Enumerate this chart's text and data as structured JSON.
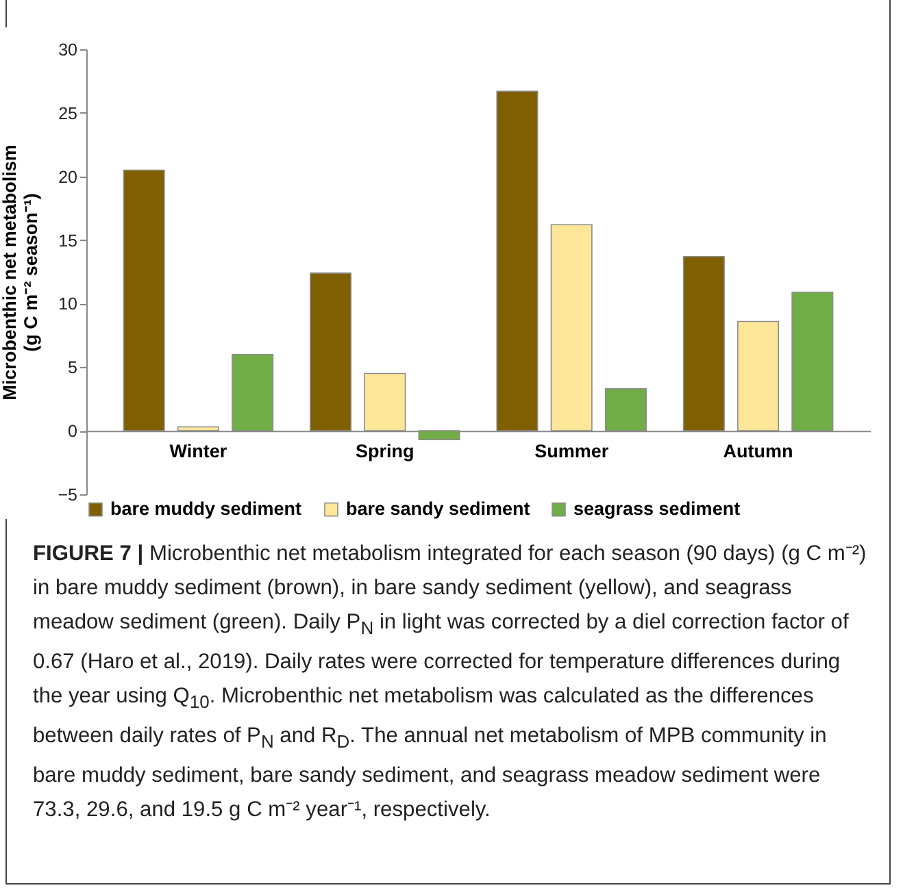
{
  "chart_data": {
    "type": "bar",
    "ylabel": "Microbenthic net metabolism\n(g C m⁻² season⁻¹)",
    "categories": [
      "Winter",
      "Spring",
      "Summer",
      "Autumn"
    ],
    "series": [
      {
        "name": "bare muddy sediment",
        "color": "#7f5f00",
        "values": [
          20.5,
          12.4,
          26.7,
          13.7
        ]
      },
      {
        "name": "bare sandy sediment",
        "color": "#ffe699",
        "values": [
          0.3,
          4.5,
          16.2,
          8.6
        ]
      },
      {
        "name": "seagrass sediment",
        "color": "#70ad47",
        "values": [
          6.0,
          -0.7,
          3.3,
          10.9
        ]
      }
    ],
    "ylim": [
      -5,
      30
    ],
    "yticks": [
      -5,
      0,
      5,
      10,
      15,
      20,
      25,
      30
    ],
    "grid": false,
    "legend": "bottom",
    "annotations": [
      "FIGURE 7 |",
      "Microbenthic net metabolism integrated for each season (90 days) (g C m⁻²) in bare muddy sediment (brown), in bare sandy sediment (yellow), and seagrass meadow sediment (green). Daily P$_{N}$ in light was corrected by a diel correction factor of 0.67 (Haro et al., 2019). Daily rates were corrected for temperature differences during the year using Q$_{10}$. Microbenthic net metabolism was calculated as the differences between daily rates of P$_{N}$ and R$_{D}$. The annual net metabolism of MPB community in bare muddy sediment, bare sandy sediment, and seagrass meadow sediment were 73.3, 29.6, and 19.5 g C m⁻² year⁻¹, respectively."
    ]
  }
}
